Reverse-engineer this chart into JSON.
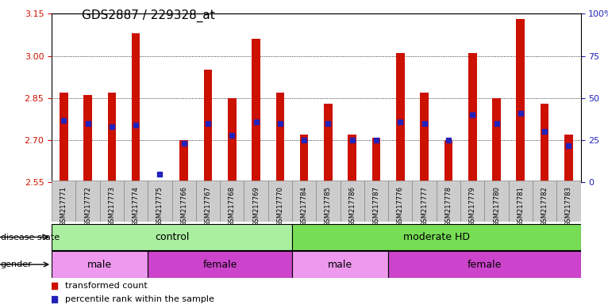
{
  "title": "GDS2887 / 229328_at",
  "samples": [
    "GSM217771",
    "GSM217772",
    "GSM217773",
    "GSM217774",
    "GSM217775",
    "GSM217766",
    "GSM217767",
    "GSM217768",
    "GSM217769",
    "GSM217770",
    "GSM217784",
    "GSM217785",
    "GSM217786",
    "GSM217787",
    "GSM217776",
    "GSM217777",
    "GSM217778",
    "GSM217779",
    "GSM217780",
    "GSM217781",
    "GSM217782",
    "GSM217783"
  ],
  "red_values": [
    2.87,
    2.86,
    2.87,
    3.08,
    2.555,
    2.7,
    2.95,
    2.85,
    3.06,
    2.87,
    2.72,
    2.83,
    2.72,
    2.71,
    3.01,
    2.87,
    2.7,
    3.01,
    2.85,
    3.13,
    2.83,
    2.72
  ],
  "blue_percentiles": [
    37,
    35,
    33,
    34,
    5,
    23,
    35,
    28,
    36,
    35,
    25,
    35,
    25,
    25,
    36,
    35,
    25,
    40,
    35,
    41,
    30,
    22
  ],
  "y_min": 2.55,
  "y_max": 3.15,
  "y_ticks_left": [
    2.55,
    2.7,
    2.85,
    3.0,
    3.15
  ],
  "y_ticks_right": [
    0,
    25,
    50,
    75,
    100
  ],
  "bar_color": "#CC1100",
  "blue_color": "#2222BB",
  "disease_groups": [
    {
      "label": "control",
      "start": 0,
      "end": 10,
      "color": "#AAEEA0"
    },
    {
      "label": "moderate HD",
      "start": 10,
      "end": 22,
      "color": "#77DD55"
    }
  ],
  "gender_groups": [
    {
      "label": "male",
      "start": 0,
      "end": 4,
      "color": "#EE99EE"
    },
    {
      "label": "female",
      "start": 4,
      "end": 10,
      "color": "#CC44CC"
    },
    {
      "label": "male",
      "start": 10,
      "end": 14,
      "color": "#EE99EE"
    },
    {
      "label": "female",
      "start": 14,
      "end": 22,
      "color": "#CC44CC"
    }
  ],
  "left_label_color": "#CC1100",
  "right_label_color": "#2222BB",
  "tick_bg_color": "#CCCCCC",
  "legend_red_label": "transformed count",
  "legend_blue_label": "percentile rank within the sample",
  "disease_label": "disease state",
  "gender_label": "gender"
}
